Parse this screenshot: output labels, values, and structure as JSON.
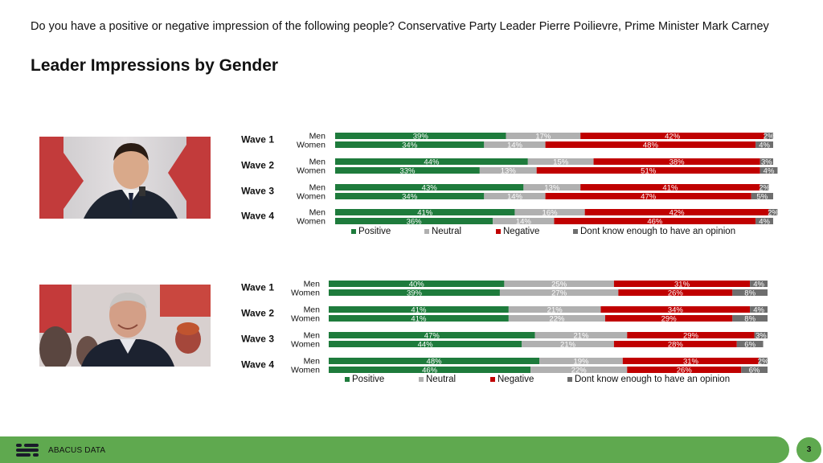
{
  "question": "Do you have a positive or negative impression of the following people? Conservative Party Leader Pierre Poilievre, Prime Minister Mark Carney",
  "title": "Leader Impressions by Gender",
  "colors": {
    "positive": "#1e7b3c",
    "neutral": "#b0b0b0",
    "negative": "#c00000",
    "dontknow": "#6e6e6e",
    "footer": "#5fa94f"
  },
  "chart_data": [
    {
      "type": "bar",
      "stacked": "horizontal-100",
      "categories": [
        "Wave 1 Men",
        "Wave 1 Women",
        "Wave 2 Men",
        "Wave 2 Women",
        "Wave 3 Men",
        "Wave 3 Women",
        "Wave 4 Men",
        "Wave 4 Women"
      ],
      "waves": [
        "Wave 1",
        "Wave 2",
        "Wave 3",
        "Wave 4"
      ],
      "genders": [
        "Men",
        "Women"
      ],
      "series": [
        {
          "name": "Positive",
          "values": [
            39,
            34,
            44,
            33,
            43,
            34,
            41,
            36
          ]
        },
        {
          "name": "Neutral",
          "values": [
            17,
            14,
            15,
            13,
            13,
            14,
            16,
            14
          ]
        },
        {
          "name": "Negative",
          "values": [
            42,
            48,
            38,
            51,
            41,
            47,
            42,
            46
          ]
        },
        {
          "name": "Dont know enough to have an opinion",
          "values": [
            2,
            4,
            3,
            4,
            2,
            5,
            2,
            4
          ]
        }
      ],
      "legend_position": "bottom"
    },
    {
      "type": "bar",
      "stacked": "horizontal-100",
      "categories": [
        "Wave 1 Men",
        "Wave 1 Women",
        "Wave 2 Men",
        "Wave 2 Women",
        "Wave 3 Men",
        "Wave 3 Women",
        "Wave 4 Men",
        "Wave 4 Women"
      ],
      "waves": [
        "Wave 1",
        "Wave 2",
        "Wave 3",
        "Wave 4"
      ],
      "genders": [
        "Men",
        "Women"
      ],
      "series": [
        {
          "name": "Positive",
          "values": [
            40,
            39,
            41,
            41,
            47,
            44,
            48,
            46
          ]
        },
        {
          "name": "Neutral",
          "values": [
            25,
            27,
            21,
            22,
            21,
            21,
            19,
            22
          ]
        },
        {
          "name": "Negative",
          "values": [
            31,
            26,
            34,
            29,
            29,
            28,
            31,
            26
          ]
        },
        {
          "name": "Dont know enough to have an opinion",
          "values": [
            4,
            8,
            4,
            8,
            3,
            6,
            2,
            6
          ]
        }
      ],
      "legend_position": "bottom"
    }
  ],
  "footer": {
    "brand": "ABACUS DATA",
    "page": "3"
  }
}
